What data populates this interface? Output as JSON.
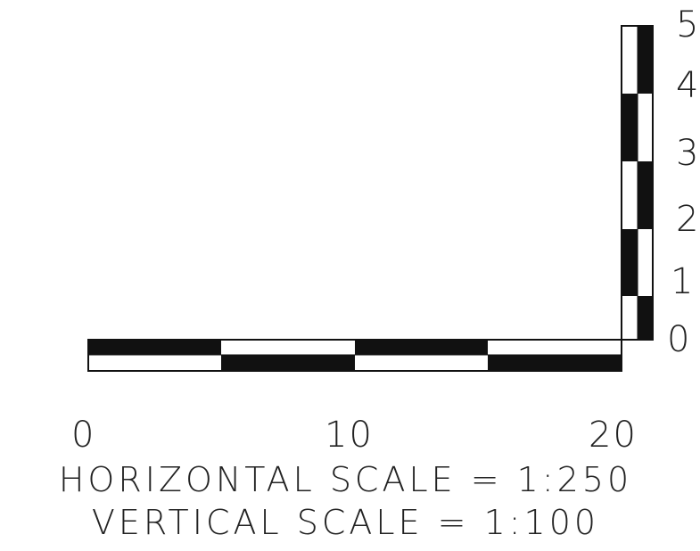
{
  "horizontal_bar": {
    "ticks": [
      "0",
      "10",
      "20"
    ]
  },
  "vertical_bar": {
    "ticks": [
      "0",
      "1",
      "2",
      "3",
      "4",
      "5"
    ]
  },
  "captions": {
    "horizontal": "HORIZONTAL SCALE = 1:250",
    "vertical": "VERTICAL SCALE = 1:100"
  },
  "colors": {
    "ink": "#111111",
    "paper": "#ffffff"
  }
}
